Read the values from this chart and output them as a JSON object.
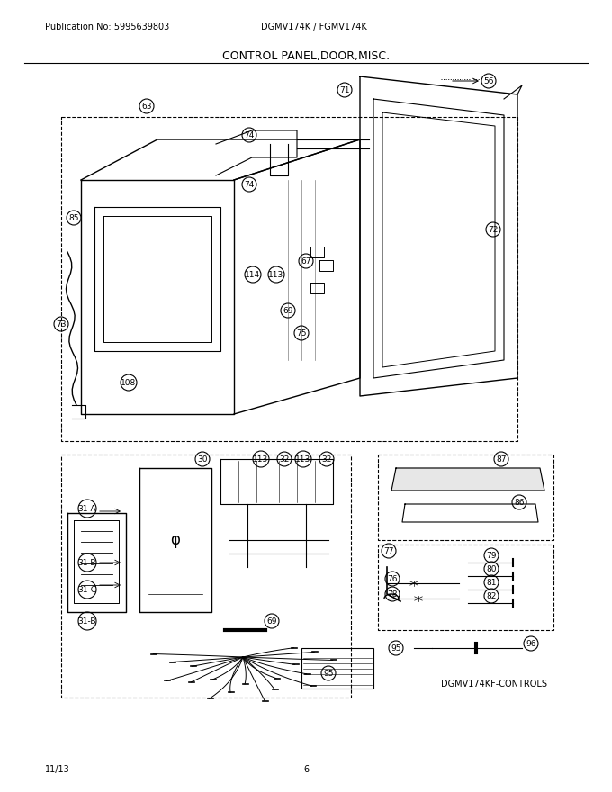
{
  "title": "CONTROL PANEL,DOOR,MISC.",
  "pub_no": "Publication No: 5995639803",
  "model": "DGMV174K / FGMV174K",
  "footer_left": "11/13",
  "footer_center": "6",
  "footer_diagram": "DGMV174KF-CONTROLS",
  "bg_color": "#ffffff",
  "line_color": "#000000",
  "fig_width": 6.8,
  "fig_height": 8.8,
  "dpi": 100
}
